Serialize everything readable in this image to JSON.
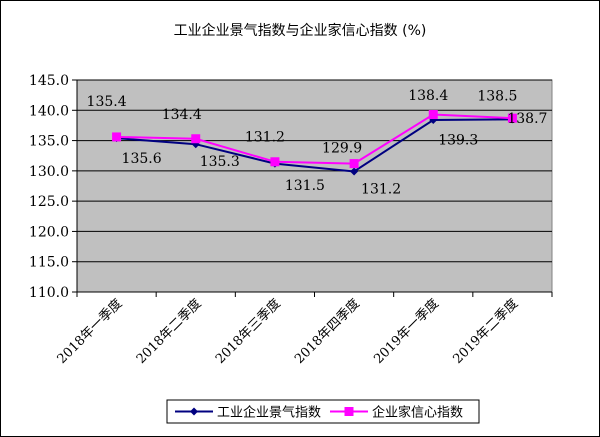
{
  "chart_data": {
    "type": "line",
    "title": "工业企业景气指数与企业家信心指数 (%)",
    "categories": [
      "2018年一季度",
      "2018年二季度",
      "2018年三季度",
      "2018年四季度",
      "2019年一季度",
      "2019年二季度"
    ],
    "ylim": [
      110.0,
      145.0
    ],
    "yticks": [
      "110.0",
      "115.0",
      "120.0",
      "125.0",
      "130.0",
      "135.0",
      "140.0",
      "145.0"
    ],
    "grid": true,
    "legend_position": "bottom",
    "plot_background": "#c0c0c0",
    "series": [
      {
        "name": "工业企业景气指数",
        "color": "#000080",
        "marker": "diamond",
        "values": [
          135.4,
          134.4,
          131.2,
          129.9,
          138.4,
          138.5
        ],
        "labels": [
          "135.4",
          "134.4",
          "131.2",
          "129.9",
          "138.4",
          "138.5"
        ]
      },
      {
        "name": "企业家信心指数",
        "color": "#ff00ff",
        "marker": "square",
        "values": [
          135.6,
          135.3,
          131.5,
          131.2,
          139.3,
          138.7
        ],
        "labels": [
          "135.6",
          "135.3",
          "131.5",
          "131.2",
          "139.3",
          "138.7"
        ]
      }
    ]
  }
}
